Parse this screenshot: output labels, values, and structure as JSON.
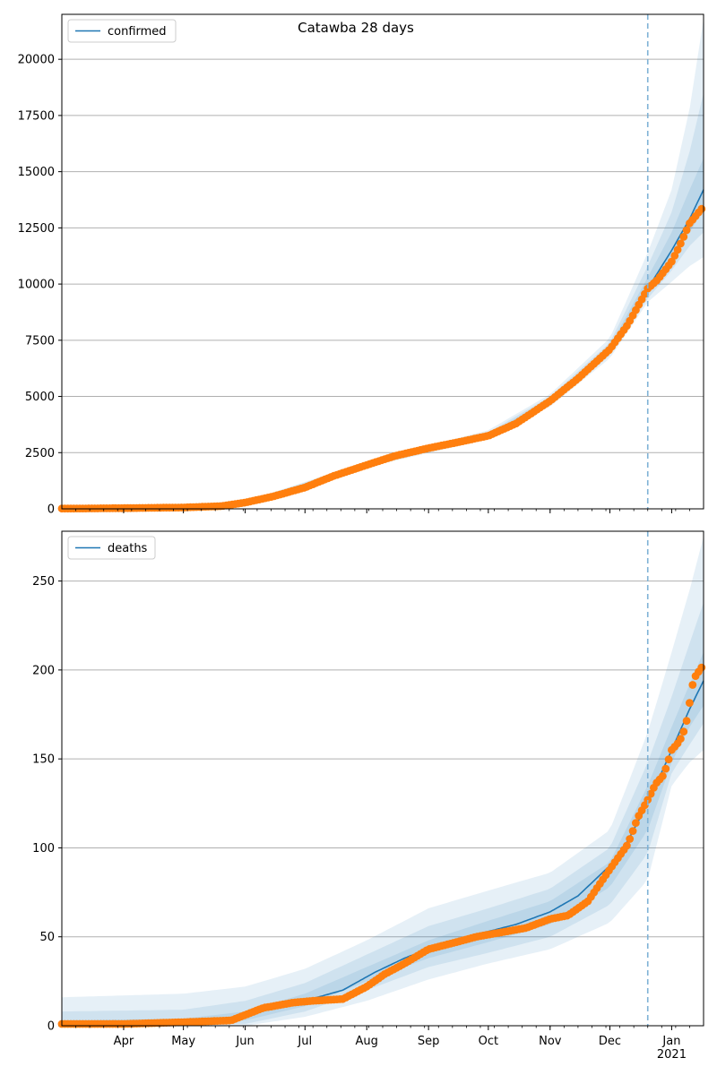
{
  "figure": {
    "title": "Catawba 28 days"
  },
  "chart_data": [
    {
      "type": "line",
      "title": "",
      "xlabel": "",
      "ylabel": "",
      "ylim": [
        0,
        22000
      ],
      "yticks": [
        0,
        2500,
        5000,
        7500,
        10000,
        12500,
        15000,
        17500,
        20000
      ],
      "grid": "horizontal",
      "legend": {
        "placement": "upper-left",
        "entries": [
          "confirmed"
        ]
      },
      "x_tick_labels": [],
      "forecast_start": "2020-12-20",
      "series": [
        {
          "name": "confirmed",
          "kind": "model-median",
          "x": [
            "2020-03-01",
            "2020-04-01",
            "2020-05-01",
            "2020-05-20",
            "2020-06-01",
            "2020-06-15",
            "2020-07-01",
            "2020-07-15",
            "2020-08-01",
            "2020-08-15",
            "2020-09-01",
            "2020-09-15",
            "2020-10-01",
            "2020-10-15",
            "2020-11-01",
            "2020-11-15",
            "2020-12-01",
            "2020-12-10",
            "2020-12-20",
            "2021-01-01",
            "2021-01-10",
            "2021-01-17"
          ],
          "y": [
            10,
            30,
            60,
            120,
            280,
            550,
            950,
            1450,
            1950,
            2350,
            2700,
            2950,
            3250,
            3800,
            4800,
            5800,
            7100,
            8200,
            9800,
            11500,
            12900,
            14200
          ]
        },
        {
          "name": "",
          "kind": "observed",
          "x": [
            "2020-03-01",
            "2020-04-01",
            "2020-05-01",
            "2020-05-20",
            "2020-06-01",
            "2020-06-15",
            "2020-07-01",
            "2020-07-15",
            "2020-08-01",
            "2020-08-15",
            "2020-09-01",
            "2020-09-15",
            "2020-10-01",
            "2020-10-15",
            "2020-11-01",
            "2020-11-15",
            "2020-12-01",
            "2020-12-10",
            "2020-12-20",
            "2020-12-25",
            "2021-01-01",
            "2021-01-05",
            "2021-01-10",
            "2021-01-17"
          ],
          "y": [
            10,
            30,
            60,
            120,
            280,
            550,
            950,
            1450,
            1950,
            2350,
            2700,
            2950,
            3250,
            3800,
            4800,
            5800,
            7100,
            8200,
            9800,
            10200,
            11000,
            11700,
            12700,
            13450
          ]
        }
      ],
      "bands": [
        {
          "x": [
            "2020-03-01",
            "2020-06-01",
            "2020-08-01",
            "2020-10-01",
            "2020-11-01",
            "2020-12-01",
            "2020-12-20",
            "2021-01-01",
            "2021-01-10",
            "2021-01-17"
          ],
          "lower": [
            0,
            250,
            1850,
            3100,
            4550,
            6700,
            9200,
            10100,
            10800,
            11200
          ],
          "upper": [
            40,
            330,
            2100,
            3500,
            5100,
            7600,
            11400,
            14200,
            17800,
            21800
          ]
        },
        {
          "x": [
            "2020-03-01",
            "2020-06-01",
            "2020-08-01",
            "2020-10-01",
            "2020-11-01",
            "2020-12-01",
            "2020-12-20",
            "2021-01-01",
            "2021-01-10",
            "2021-01-17"
          ],
          "lower": [
            5,
            260,
            1880,
            3150,
            4620,
            6820,
            9350,
            10600,
            11700,
            12300
          ],
          "upper": [
            30,
            310,
            2050,
            3400,
            5000,
            7400,
            10800,
            13200,
            15900,
            18500
          ]
        },
        {
          "x": [
            "2020-03-01",
            "2020-06-01",
            "2020-08-01",
            "2020-10-01",
            "2020-11-01",
            "2020-12-01",
            "2020-12-20",
            "2021-01-01",
            "2021-01-10",
            "2021-01-17"
          ],
          "lower": [
            8,
            270,
            1910,
            3200,
            4700,
            6950,
            9550,
            11000,
            12300,
            13300
          ],
          "upper": [
            20,
            295,
            2010,
            3320,
            4920,
            7250,
            10300,
            12300,
            14200,
            15600
          ]
        }
      ]
    },
    {
      "type": "line",
      "title": "",
      "xlabel": "",
      "ylabel": "",
      "ylim": [
        0,
        278
      ],
      "yticks": [
        0,
        50,
        100,
        150,
        200,
        250
      ],
      "grid": "horizontal",
      "legend": {
        "placement": "upper-left",
        "entries": [
          "deaths"
        ]
      },
      "x_tick_labels": [
        "Apr",
        "May",
        "Jun",
        "Jul",
        "Aug",
        "Sep",
        "Oct",
        "Nov",
        "Dec",
        "Jan\n2021"
      ],
      "forecast_start": "2020-12-20",
      "series": [
        {
          "name": "deaths",
          "kind": "model-median",
          "x": [
            "2020-03-01",
            "2020-04-01",
            "2020-05-01",
            "2020-05-25",
            "2020-06-10",
            "2020-07-01",
            "2020-07-20",
            "2020-08-05",
            "2020-08-20",
            "2020-09-05",
            "2020-09-20",
            "2020-10-01",
            "2020-10-15",
            "2020-11-01",
            "2020-11-15",
            "2020-12-01",
            "2020-12-10",
            "2020-12-20",
            "2021-01-01",
            "2021-01-10",
            "2021-01-17"
          ],
          "y": [
            1,
            1,
            2,
            3,
            9,
            14,
            20,
            30,
            38,
            45,
            50,
            53,
            57,
            64,
            73,
            90,
            104,
            125,
            155,
            178,
            194
          ]
        },
        {
          "name": "",
          "kind": "observed",
          "x": [
            "2020-03-01",
            "2020-04-01",
            "2020-05-01",
            "2020-05-25",
            "2020-06-10",
            "2020-06-25",
            "2020-07-05",
            "2020-07-20",
            "2020-08-01",
            "2020-08-10",
            "2020-08-20",
            "2020-09-01",
            "2020-09-15",
            "2020-09-25",
            "2020-10-05",
            "2020-10-20",
            "2020-11-01",
            "2020-11-10",
            "2020-11-20",
            "2020-12-01",
            "2020-12-10",
            "2020-12-15",
            "2020-12-20",
            "2020-12-24",
            "2020-12-28",
            "2021-01-01",
            "2021-01-05",
            "2021-01-08",
            "2021-01-12",
            "2021-01-17"
          ],
          "y": [
            1,
            1,
            2,
            3,
            10,
            13,
            14,
            15,
            22,
            29,
            35,
            43,
            47,
            50,
            52,
            55,
            60,
            62,
            70,
            88,
            102,
            117,
            127,
            136,
            141,
            155,
            160,
            168,
            195,
            203
          ]
        }
      ],
      "bands": [
        {
          "x": [
            "2020-03-01",
            "2020-05-01",
            "2020-06-01",
            "2020-07-01",
            "2020-08-01",
            "2020-09-01",
            "2020-10-01",
            "2020-11-01",
            "2020-12-01",
            "2020-12-20",
            "2021-01-01",
            "2021-01-10",
            "2021-01-17"
          ],
          "lower": [
            0,
            0,
            0,
            5,
            14,
            26,
            35,
            43,
            58,
            82,
            135,
            148,
            155
          ],
          "upper": [
            16,
            18,
            22,
            32,
            48,
            66,
            76,
            86,
            110,
            165,
            210,
            245,
            275
          ]
        },
        {
          "x": [
            "2020-03-01",
            "2020-05-01",
            "2020-06-01",
            "2020-07-01",
            "2020-08-01",
            "2020-09-01",
            "2020-10-01",
            "2020-11-01",
            "2020-12-01",
            "2020-12-20",
            "2021-01-01",
            "2021-01-10",
            "2021-01-17"
          ],
          "lower": [
            0,
            1,
            1,
            8,
            20,
            33,
            41,
            50,
            68,
            97,
            142,
            158,
            170
          ],
          "upper": [
            8,
            9,
            14,
            24,
            40,
            56,
            66,
            77,
            100,
            148,
            185,
            215,
            238
          ]
        },
        {
          "x": [
            "2020-03-01",
            "2020-05-01",
            "2020-06-01",
            "2020-07-01",
            "2020-08-01",
            "2020-09-01",
            "2020-10-01",
            "2020-11-01",
            "2020-12-01",
            "2020-12-20",
            "2021-01-01",
            "2021-01-10",
            "2021-01-17"
          ],
          "lower": [
            0,
            1,
            3,
            11,
            25,
            38,
            47,
            57,
            78,
            110,
            148,
            168,
            180
          ],
          "upper": [
            3,
            4,
            8,
            18,
            33,
            48,
            59,
            70,
            92,
            135,
            168,
            192,
            210
          ]
        }
      ]
    }
  ],
  "colors": {
    "model_line": "#1f77b4",
    "observed": "#ff7f0e",
    "band": "#1f77b4",
    "grid": "#b0b0b0",
    "forecast_marker": "#7fb2d6"
  }
}
